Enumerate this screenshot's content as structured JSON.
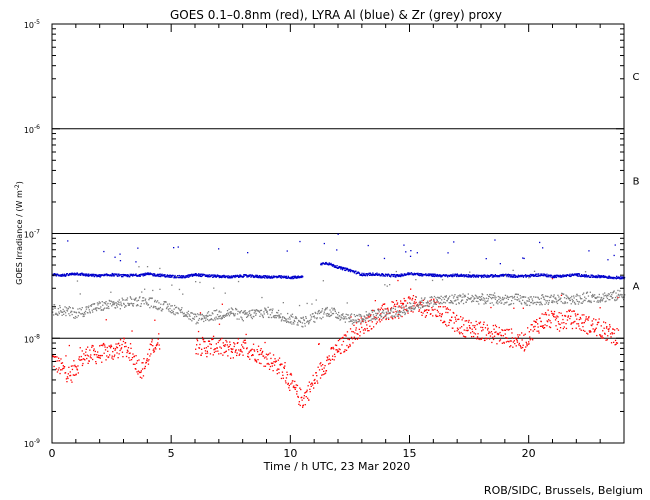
{
  "chart_data": {
    "type": "scatter",
    "title": "GOES 0.1–0.8nm (red), LYRA Al (blue) & Zr (grey) proxy",
    "xlabel": "Time / h UTC, 23 Mar 2020",
    "ylabel_main": "GOES Irradiance / (W m",
    "ylabel_sup": "-2",
    "ylabel_close": ")",
    "credit": "ROB/SIDC, Brussels, Belgium",
    "x_axis": {
      "min": 0,
      "max": 24,
      "major_ticks": [
        0,
        5,
        10,
        15,
        20
      ],
      "minor_step": 1
    },
    "y_axis": {
      "scale": "log",
      "min_exponent": -9,
      "max_exponent": -5,
      "tick_labels": [
        {
          "exp": -9,
          "base": "10",
          "sup": "-9"
        },
        {
          "exp": -8,
          "base": "10",
          "sup": "-8"
        },
        {
          "exp": -7,
          "base": "10",
          "sup": "-7"
        },
        {
          "exp": -6,
          "base": "10",
          "sup": "-6"
        },
        {
          "exp": -5,
          "base": "10",
          "sup": "-5"
        }
      ],
      "class_lines": [
        1e-06,
        1e-07,
        1e-08
      ]
    },
    "flare_classes": [
      {
        "label": "A",
        "y": 3.2e-08
      },
      {
        "label": "B",
        "y": 3.2e-07
      },
      {
        "label": "C",
        "y": 3.2e-06
      }
    ],
    "colors": {
      "goes": "#ff0000",
      "al": "#0000cc",
      "zr": "#808080",
      "axis": "#000000"
    },
    "series": [
      {
        "name": "GOES 0.1–0.8nm",
        "key": "goes",
        "x": [
          0,
          0.25,
          0.5,
          0.75,
          1,
          1.25,
          1.5,
          1.75,
          2,
          2.25,
          2.5,
          2.75,
          3,
          3.25,
          3.5,
          3.75,
          4,
          4.25,
          4.5,
          4.75,
          5,
          5.25,
          5.5,
          5.75,
          6,
          6.25,
          6.5,
          6.75,
          7,
          7.25,
          7.5,
          7.75,
          8,
          8.25,
          8.5,
          8.75,
          9,
          9.25,
          9.5,
          9.75,
          10,
          10.25,
          10.5,
          10.75,
          11,
          11.25,
          11.5,
          11.75,
          12,
          12.25,
          12.5,
          12.75,
          13,
          13.25,
          13.5,
          13.75,
          14,
          14.25,
          14.5,
          14.75,
          15,
          15.25,
          15.5,
          15.75,
          16,
          16.25,
          16.5,
          16.75,
          17,
          17.25,
          17.5,
          17.75,
          18,
          18.25,
          18.5,
          18.75,
          19,
          19.25,
          19.5,
          19.75,
          20,
          20.25,
          20.5,
          20.75,
          21,
          21.25,
          21.5,
          21.75,
          22,
          22.25,
          22.5,
          22.75,
          23,
          23.25,
          23.5,
          23.75
        ],
        "y": [
          6.5e-09,
          5.5e-09,
          5e-09,
          4.5e-09,
          5.5e-09,
          6.5e-09,
          7.2e-09,
          7e-09,
          7.2e-09,
          7.5e-09,
          7.6e-09,
          8e-09,
          8.2e-09,
          7.5e-09,
          6e-09,
          5e-09,
          6.5e-09,
          8.8e-09,
          9.5e-09,
          null,
          null,
          null,
          null,
          null,
          8.8e-09,
          8.5e-09,
          8.2e-09,
          8.6e-09,
          8.4e-09,
          8e-09,
          7.8e-09,
          8.2e-09,
          8.5e-09,
          7.8e-09,
          7.5e-09,
          7e-09,
          6.4e-09,
          6e-09,
          5.5e-09,
          4.6e-09,
          3.8e-09,
          3e-09,
          2.6e-09,
          3.2e-09,
          4e-09,
          5e-09,
          6e-09,
          7e-09,
          8e-09,
          9e-09,
          1.05e-08,
          1.2e-08,
          1.35e-08,
          1.45e-08,
          1.6e-08,
          1.7e-08,
          1.8e-08,
          1.85e-08,
          1.9e-08,
          2.05e-08,
          2.2e-08,
          2.05e-08,
          1.95e-08,
          2e-08,
          2.05e-08,
          1.85e-08,
          1.65e-08,
          1.5e-08,
          1.38e-08,
          1.3e-08,
          1.25e-08,
          1.22e-08,
          1.2e-08,
          1.15e-08,
          1.12e-08,
          1.08e-08,
          1.05e-08,
          1.02e-08,
          1e-08,
          9e-09,
          1.1e-08,
          1.3e-08,
          1.45e-08,
          1.55e-08,
          1.5e-08,
          1.45e-08,
          1.5e-08,
          1.55e-08,
          1.5e-08,
          1.42e-08,
          1.35e-08,
          1.3e-08,
          1.25e-08,
          1.15e-08,
          1.1e-08,
          1.05e-08
        ]
      },
      {
        "name": "LYRA Al",
        "key": "al",
        "x": [
          0,
          0.5,
          1,
          1.5,
          2,
          2.5,
          3,
          3.5,
          4,
          4.5,
          5,
          5.5,
          6,
          6.5,
          7,
          7.5,
          8,
          8.5,
          9,
          9.5,
          10,
          10.5,
          11,
          11.25,
          11.5,
          12,
          12.5,
          13,
          13.5,
          14,
          14.5,
          15,
          15.5,
          16,
          16.5,
          17,
          17.5,
          18,
          18.5,
          19,
          19.5,
          20,
          20.5,
          21,
          21.5,
          22,
          22.5,
          23,
          23.5,
          24
        ],
        "y": [
          4.1e-08,
          4.05e-08,
          4.2e-08,
          4.05e-08,
          4e-08,
          4.1e-08,
          4e-08,
          4.05e-08,
          4.15e-08,
          4.05e-08,
          3.95e-08,
          3.9e-08,
          4.1e-08,
          4e-08,
          3.95e-08,
          3.9e-08,
          4e-08,
          3.95e-08,
          3.9e-08,
          3.9e-08,
          3.85e-08,
          3.9e-08,
          null,
          5.2e-08,
          5.3e-08,
          4.8e-08,
          4.5e-08,
          4.1e-08,
          4.15e-08,
          4.05e-08,
          4e-08,
          4.2e-08,
          4.1e-08,
          4.05e-08,
          4e-08,
          4.05e-08,
          4e-08,
          3.95e-08,
          4e-08,
          4.05e-08,
          3.95e-08,
          4e-08,
          4.1e-08,
          3.95e-08,
          4e-08,
          4.1e-08,
          3.95e-08,
          3.95e-08,
          3.85e-08,
          3.85e-08
        ]
      },
      {
        "name": "Zr",
        "key": "zr",
        "x": [
          0,
          0.5,
          1,
          1.5,
          2,
          2.5,
          3,
          3.5,
          4,
          4.5,
          5,
          5.5,
          6,
          6.5,
          7,
          7.5,
          8,
          8.5,
          9,
          9.5,
          10,
          10.5,
          11,
          11.5,
          12,
          12.5,
          13,
          13.5,
          14,
          14.5,
          15,
          15.5,
          16,
          16.5,
          17,
          17.5,
          18,
          18.5,
          19,
          19.5,
          20,
          20.5,
          21,
          21.5,
          22,
          22.5,
          23,
          23.5,
          24
        ],
        "y": [
          1.9e-08,
          1.85e-08,
          1.75e-08,
          1.9e-08,
          2.05e-08,
          2.1e-08,
          2.2e-08,
          2.3e-08,
          2.25e-08,
          2.1e-08,
          1.95e-08,
          1.8e-08,
          1.55e-08,
          1.65e-08,
          1.7e-08,
          1.8e-08,
          1.65e-08,
          1.75e-08,
          1.8e-08,
          1.7e-08,
          1.55e-08,
          1.45e-08,
          1.6e-08,
          1.85e-08,
          1.7e-08,
          1.55e-08,
          1.6e-08,
          1.7e-08,
          1.75e-08,
          1.8e-08,
          2e-08,
          2.2e-08,
          2.3e-08,
          2.35e-08,
          2.4e-08,
          2.45e-08,
          2.4e-08,
          2.35e-08,
          2.35e-08,
          2.4e-08,
          2.3e-08,
          2.35e-08,
          2.4e-08,
          2.45e-08,
          2.4e-08,
          2.5e-08,
          2.5e-08,
          2.55e-08,
          2.65e-08
        ]
      }
    ]
  }
}
